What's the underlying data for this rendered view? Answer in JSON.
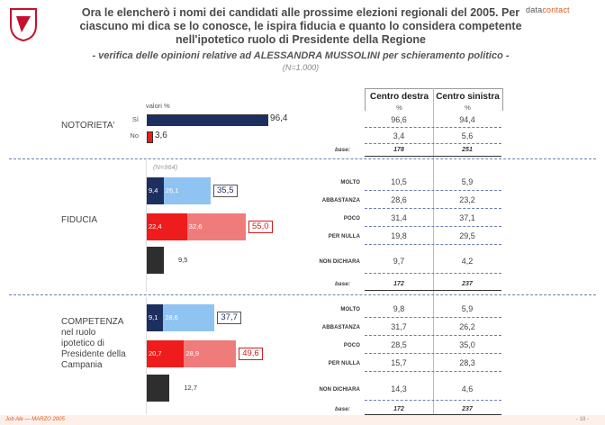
{
  "brand": {
    "a": "data",
    "b": "contact"
  },
  "title_lines": [
    "Ora le elencherò i nomi dei candidati alle prossime elezioni regionali del 2005. Per",
    "ciascuno mi dica se lo conosce, le ispira fiducia e quanto lo considera competente",
    "nell'ipotetico ruolo di Presidente della Regione"
  ],
  "subtitle": "- verifica delle opinioni relative ad ALESSANDRA MUSSOLINI per schieramento politico -",
  "n_total": "(N=1.000)",
  "n_fiducia": "(N=964)",
  "valori_label": "valori %",
  "columns": [
    "Centro destra",
    "Centro sinistra"
  ],
  "pct_sign": "%",
  "base_label": "base:",
  "sections": [
    {
      "label": "NOTORIETA'",
      "rows": [
        {
          "label": "Sì",
          "values": [
            "96,6",
            "94,4"
          ]
        },
        {
          "label": "No",
          "values": [
            "3,4",
            "5,6"
          ]
        }
      ],
      "base": [
        "178",
        "251"
      ]
    },
    {
      "label": "FIDUCIA",
      "rows": [
        {
          "label": "MOLTO",
          "values": [
            "10,5",
            "5,9"
          ]
        },
        {
          "label": "ABBASTANZA",
          "values": [
            "28,6",
            "23,2"
          ]
        },
        {
          "label": "POCO",
          "values": [
            "31,4",
            "37,1"
          ]
        },
        {
          "label": "PER NULLA",
          "values": [
            "19,8",
            "29,5"
          ]
        },
        {
          "label": "NON DICHIARA",
          "values": [
            "9,7",
            "4,2"
          ]
        }
      ],
      "base": [
        "172",
        "237"
      ]
    },
    {
      "label": "COMPETENZA nel ruolo ipotetico di Presidente della Campania",
      "label_lines": [
        "COMPETENZA",
        "nel ruolo",
        "ipotetico di",
        "Presidente della",
        "Campania"
      ],
      "rows": [
        {
          "label": "MOLTO",
          "values": [
            "9,8",
            "5,9"
          ]
        },
        {
          "label": "ABBASTANZA",
          "values": [
            "31,7",
            "26,2"
          ]
        },
        {
          "label": "POCO",
          "values": [
            "28,5",
            "35,0"
          ]
        },
        {
          "label": "PER NULLA",
          "values": [
            "15,7",
            "28,3"
          ]
        },
        {
          "label": "NON DICHIARA",
          "values": [
            "14,3",
            "4,6"
          ]
        }
      ],
      "base": [
        "172",
        "237"
      ]
    }
  ],
  "chart_data": [
    {
      "type": "bar",
      "title": "NOTORIETA'",
      "categories": [
        "Sì",
        "No"
      ],
      "values": [
        96.4,
        3.6
      ],
      "labels": [
        "96,4",
        "3,6"
      ],
      "colors": [
        "#1c2f5e",
        "#e0201c"
      ]
    },
    {
      "type": "bar",
      "title": "FIDUCIA",
      "stacks": [
        {
          "segments": [
            {
              "value": 9.4,
              "label": "9,4",
              "color": "#1c2f5e"
            },
            {
              "value": 26.1,
              "label": "26,1",
              "color": "#8fc3f2"
            }
          ],
          "total": "35,5"
        },
        {
          "segments": [
            {
              "value": 22.4,
              "label": "22,4",
              "color": "#ee1c1c"
            },
            {
              "value": 32.6,
              "label": "32,6",
              "color": "#f07b7b"
            }
          ],
          "total": "55,0"
        },
        {
          "segments": [
            {
              "value": 9.5,
              "label": "9,5",
              "color": "#2e2e2e"
            }
          ],
          "total": ""
        }
      ]
    },
    {
      "type": "bar",
      "title": "COMPETENZA",
      "stacks": [
        {
          "segments": [
            {
              "value": 9.1,
              "label": "9,1",
              "color": "#1c2f5e"
            },
            {
              "value": 28.6,
              "label": "28,6",
              "color": "#8fc3f2"
            }
          ],
          "total": "37,7"
        },
        {
          "segments": [
            {
              "value": 20.7,
              "label": "20,7",
              "color": "#ee1c1c"
            },
            {
              "value": 28.9,
              "label": "28,9",
              "color": "#f07b7b"
            }
          ],
          "total": "49,6"
        },
        {
          "segments": [
            {
              "value": 12.7,
              "label": "12,7",
              "color": "#2e2e2e"
            }
          ],
          "total": ""
        }
      ]
    }
  ],
  "footer": {
    "left": "Job Ale — MARZO 2005",
    "right": "- 18 -"
  }
}
